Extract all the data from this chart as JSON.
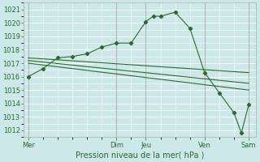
{
  "title": "",
  "xlabel": "Pression niveau de la mer( hPa )",
  "ylabel": "",
  "bg_color": "#cde8e8",
  "grid_color": "#ffffff",
  "line_color": "#2d6a2d",
  "marker_color": "#2d6a2d",
  "ylim": [
    1011.5,
    1021.5
  ],
  "yticks": [
    1012,
    1013,
    1014,
    1015,
    1016,
    1017,
    1018,
    1019,
    1020,
    1021
  ],
  "day_labels": [
    "Mer",
    "Dim",
    "Jeu",
    "Ven",
    "Sam"
  ],
  "day_positions": [
    0,
    36,
    48,
    72,
    90
  ],
  "xlim": [
    -2,
    93
  ],
  "series": [
    {
      "x": [
        0,
        6,
        12,
        18,
        24,
        30,
        36,
        42,
        48,
        51,
        54,
        60,
        66,
        72,
        78,
        84,
        87,
        90
      ],
      "y": [
        1016.0,
        1016.6,
        1017.4,
        1017.5,
        1017.7,
        1018.2,
        1018.5,
        1018.5,
        1020.1,
        1020.5,
        1020.5,
        1020.8,
        1019.6,
        1016.3,
        1014.8,
        1013.3,
        1011.8,
        1013.9
      ],
      "has_markers": true
    },
    {
      "x": [
        0,
        90
      ],
      "y": [
        1017.4,
        1016.3
      ],
      "has_markers": false
    },
    {
      "x": [
        0,
        90
      ],
      "y": [
        1017.2,
        1015.5
      ],
      "has_markers": false
    },
    {
      "x": [
        0,
        90
      ],
      "y": [
        1017.0,
        1015.0
      ],
      "has_markers": false
    }
  ],
  "vline_positions": [
    0,
    36,
    48,
    72,
    90
  ],
  "vline_color": "#666666",
  "tick_fontsize": 6,
  "xlabel_fontsize": 7
}
